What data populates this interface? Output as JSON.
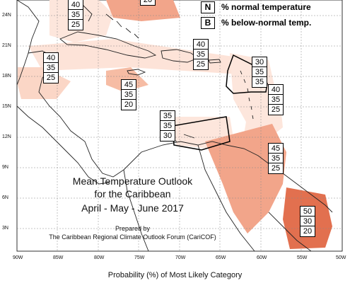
{
  "legend": [
    {
      "key": "N",
      "label": "% normal temperature"
    },
    {
      "key": "B",
      "label": "% below-normal temp."
    }
  ],
  "title": {
    "line1": "Mean Temperature Outlook",
    "line2": "for the Caribbean",
    "line3": "April - May - June 2017",
    "prepared1": "Prepared by",
    "prepared2": "The Caribbean Regional Climate Outlook Forum (CariCOF)"
  },
  "footer": "Probability (%) of Most Likely Category",
  "lat_labels": [
    "24N",
    "21N",
    "18N",
    "15N",
    "12N",
    "9N",
    "6N",
    "3N"
  ],
  "lon_labels": [
    "90W",
    "85W",
    "80W",
    "75W",
    "70W",
    "65W",
    "60W",
    "55W",
    "50W"
  ],
  "regions": [
    {
      "id": "bahamas",
      "values": [
        "40",
        "35",
        "25"
      ]
    },
    {
      "id": "north-atlantic",
      "values": [
        "",
        "",
        "20"
      ]
    },
    {
      "id": "western-caribbean",
      "values": [
        "40",
        "35",
        "25"
      ]
    },
    {
      "id": "jamaica-sea",
      "values": [
        "45",
        "35",
        "20"
      ]
    },
    {
      "id": "greater-antilles",
      "values": [
        "40",
        "35",
        "25"
      ]
    },
    {
      "id": "leeward-islands",
      "values": [
        "30",
        "35",
        "35"
      ]
    },
    {
      "id": "windward-islands",
      "values": [
        "40",
        "35",
        "25"
      ]
    },
    {
      "id": "abc-islands",
      "values": [
        "35",
        "35",
        "30"
      ]
    },
    {
      "id": "guianas-west",
      "values": [
        "45",
        "35",
        "25"
      ]
    },
    {
      "id": "guianas-east",
      "values": [
        "50",
        "30",
        "20"
      ]
    }
  ],
  "colors": {
    "light": "#fde3d8",
    "medium": "#f4b49c",
    "strong": "#eb8f70",
    "deep": "#e06a4a",
    "grid": "#7a7a7a",
    "land": "#222222"
  }
}
